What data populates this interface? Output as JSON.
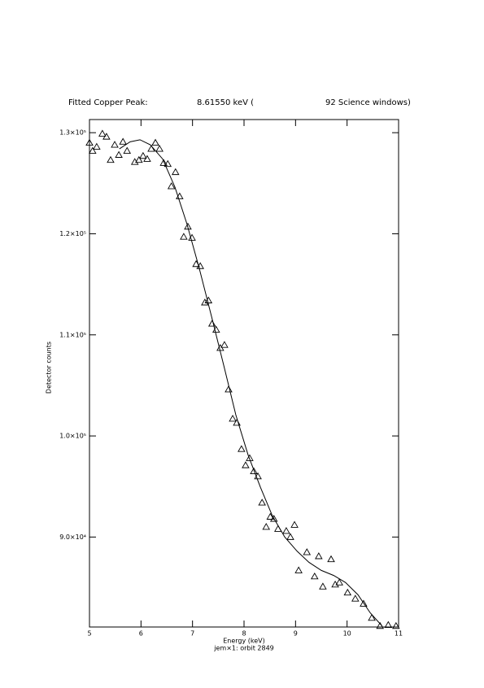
{
  "chart_data": {
    "type": "scatter",
    "title": [
      "Fitted Copper Peak:",
      "8.61550 keV (",
      "92 Science windows)"
    ],
    "x_label": "Energy (keV)",
    "y_label": "Detector counts",
    "subtitle": "jem×1: orbit 2849",
    "xlim": [
      5,
      11
    ],
    "xticks": [
      5,
      6,
      7,
      8,
      9,
      10,
      11
    ],
    "ylim": [
      81100,
      131300
    ],
    "yticks": [
      {
        "value": 90000,
        "label": "9.0×10⁴"
      },
      {
        "value": 100000,
        "label": "1.0×10⁵"
      },
      {
        "value": 110000,
        "label": "1.1×10⁵"
      },
      {
        "value": 120000,
        "label": "1.2×10⁵"
      },
      {
        "value": 130000,
        "label": "1.3×10⁵"
      }
    ],
    "color": "#000000",
    "series": [
      {
        "type": "scatter",
        "x": [
          5.0,
          5.06,
          5.14,
          5.25,
          5.33,
          5.41,
          5.49,
          5.57,
          5.65,
          5.73,
          5.88,
          5.96,
          6.04,
          6.12,
          6.2,
          6.28,
          6.36,
          6.44,
          6.52,
          6.59,
          6.67,
          6.75,
          6.83,
          6.91,
          6.99,
          7.07,
          7.15,
          7.24,
          7.31,
          7.38,
          7.46,
          7.54,
          7.62,
          7.7,
          7.78,
          7.86,
          7.95,
          8.03,
          8.11,
          8.19,
          8.27,
          8.35,
          8.43,
          8.51,
          8.58,
          8.66,
          8.82,
          8.9,
          8.98,
          9.06,
          9.22,
          9.37,
          9.45,
          9.53,
          9.69,
          9.77,
          9.85,
          10.01,
          10.16,
          10.32,
          10.48,
          10.64,
          10.8,
          10.95
        ],
        "values": [
          129000,
          128200,
          128600,
          129900,
          129600,
          127300,
          128800,
          127800,
          129100,
          128200,
          127100,
          127300,
          127700,
          127400,
          128400,
          129000,
          128400,
          127000,
          126900,
          124700,
          126100,
          123700,
          119700,
          120700,
          119600,
          117000,
          116800,
          113200,
          113400,
          111100,
          110500,
          108700,
          109000,
          104600,
          101700,
          101300,
          98700,
          97100,
          97800,
          96500,
          96000,
          93400,
          91000,
          92000,
          91800,
          90800,
          90600,
          90000,
          91200,
          86700,
          88500,
          86100,
          88100,
          85100,
          87800,
          85300,
          85500,
          84500,
          83900,
          83400,
          82000,
          81200,
          81300,
          81200
        ]
      },
      {
        "type": "line",
        "x": [
          5.58,
          5.79,
          5.98,
          6.18,
          6.42,
          6.66,
          6.89,
          7.13,
          7.37,
          7.61,
          7.84,
          8.08,
          8.32,
          8.55,
          8.79,
          9.03,
          9.26,
          9.5,
          9.74,
          9.97,
          10.21,
          10.45,
          10.68
        ],
        "values": [
          128400,
          129100,
          129300,
          128800,
          127400,
          124600,
          121000,
          116600,
          111800,
          106900,
          102100,
          98100,
          94900,
          92100,
          90000,
          88600,
          87500,
          86700,
          86200,
          85500,
          84300,
          82500,
          81200
        ]
      }
    ]
  }
}
